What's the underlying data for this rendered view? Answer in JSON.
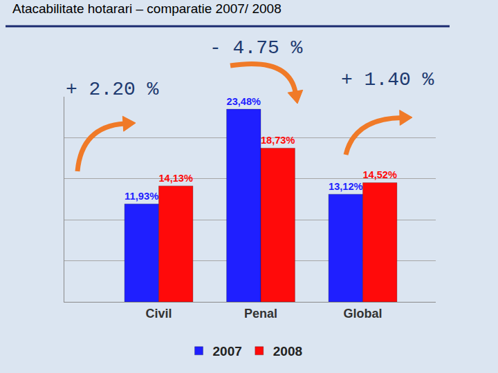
{
  "chart_data": {
    "type": "bar",
    "title": "Atacabilitate hotarari – comparatie 2007/ 2008",
    "categories": [
      "Civil",
      "Penal",
      "Global"
    ],
    "series": [
      {
        "name": "2007",
        "color": "#1f1fff",
        "values": [
          11.93,
          23.48,
          13.12
        ],
        "value_labels": [
          "11,93%",
          "23,48%",
          "13,12%"
        ]
      },
      {
        "name": "2008",
        "color": "#ff0a0a",
        "values": [
          14.13,
          18.73,
          14.52
        ],
        "value_labels": [
          "14,13%",
          "18,73%",
          "14,52%"
        ]
      }
    ],
    "ylim": [
      0,
      25
    ],
    "yticks": [
      0,
      5,
      10,
      15,
      20,
      25
    ],
    "grid": true,
    "tick_labels": "x",
    "legend": "bottom",
    "data_labels": true,
    "annotations": [
      {
        "text": "+ 2.20 %",
        "category": "Civil"
      },
      {
        "text": "- 4.75 %",
        "category": "Penal"
      },
      {
        "text": "+ 1.40 %",
        "category": "Global"
      }
    ]
  }
}
